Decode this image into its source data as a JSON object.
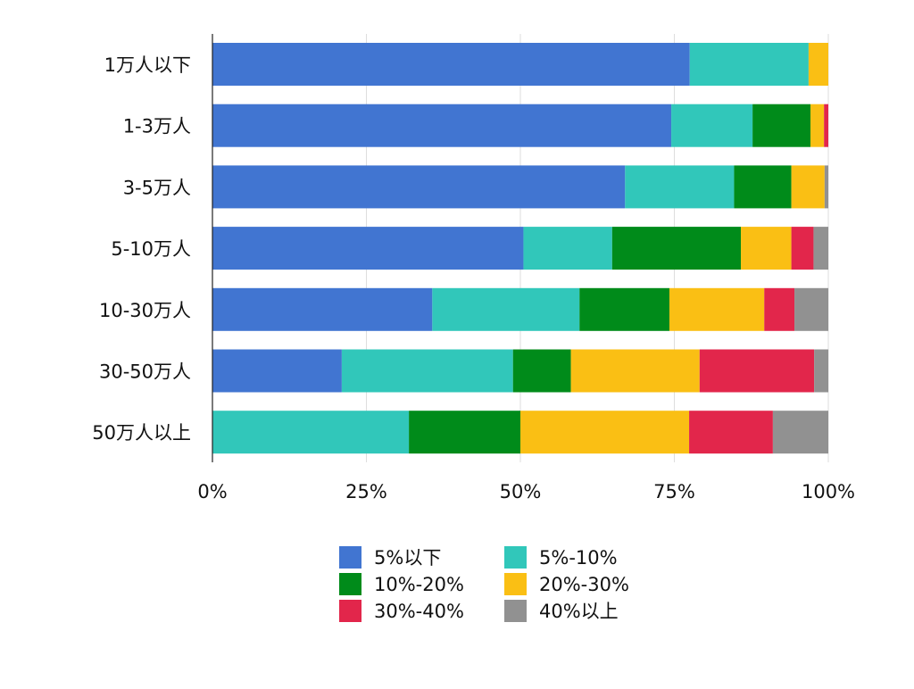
{
  "chart_data": {
    "type": "bar",
    "orientation": "horizontal",
    "stacked": true,
    "normalized": true,
    "categories": [
      "1万人以下",
      "1-3万人",
      "3-5万人",
      "5-10万人",
      "10-30万人",
      "30-50万人",
      "50万人以上"
    ],
    "series": [
      {
        "name": "5%以下",
        "color": "#4175D1",
        "values": [
          77.5,
          74.5,
          67.0,
          50.5,
          35.7,
          21.0,
          0
        ]
      },
      {
        "name": "5%-10%",
        "color": "#31C7BA",
        "values": [
          19.3,
          13.2,
          17.7,
          14.4,
          23.9,
          27.8,
          31.9
        ]
      },
      {
        "name": "10%-20%",
        "color": "#008B1A",
        "values": [
          0,
          9.4,
          9.3,
          20.9,
          14.6,
          9.4,
          18.1
        ]
      },
      {
        "name": "20%-30%",
        "color": "#FABF14",
        "values": [
          3.2,
          2.2,
          5.4,
          8.2,
          15.4,
          20.9,
          27.4
        ]
      },
      {
        "name": "30%-40%",
        "color": "#E2264B",
        "values": [
          0,
          0.7,
          0,
          3.6,
          4.9,
          18.6,
          13.6
        ]
      },
      {
        "name": "40%以上",
        "color": "#919191",
        "values": [
          0,
          0,
          0.6,
          2.4,
          5.5,
          2.3,
          9.0
        ]
      }
    ],
    "xlim": [
      0,
      100
    ],
    "xticks": [
      "0%",
      "25%",
      "50%",
      "75%",
      "100%"
    ],
    "grid": true,
    "legend_position": "bottom"
  }
}
